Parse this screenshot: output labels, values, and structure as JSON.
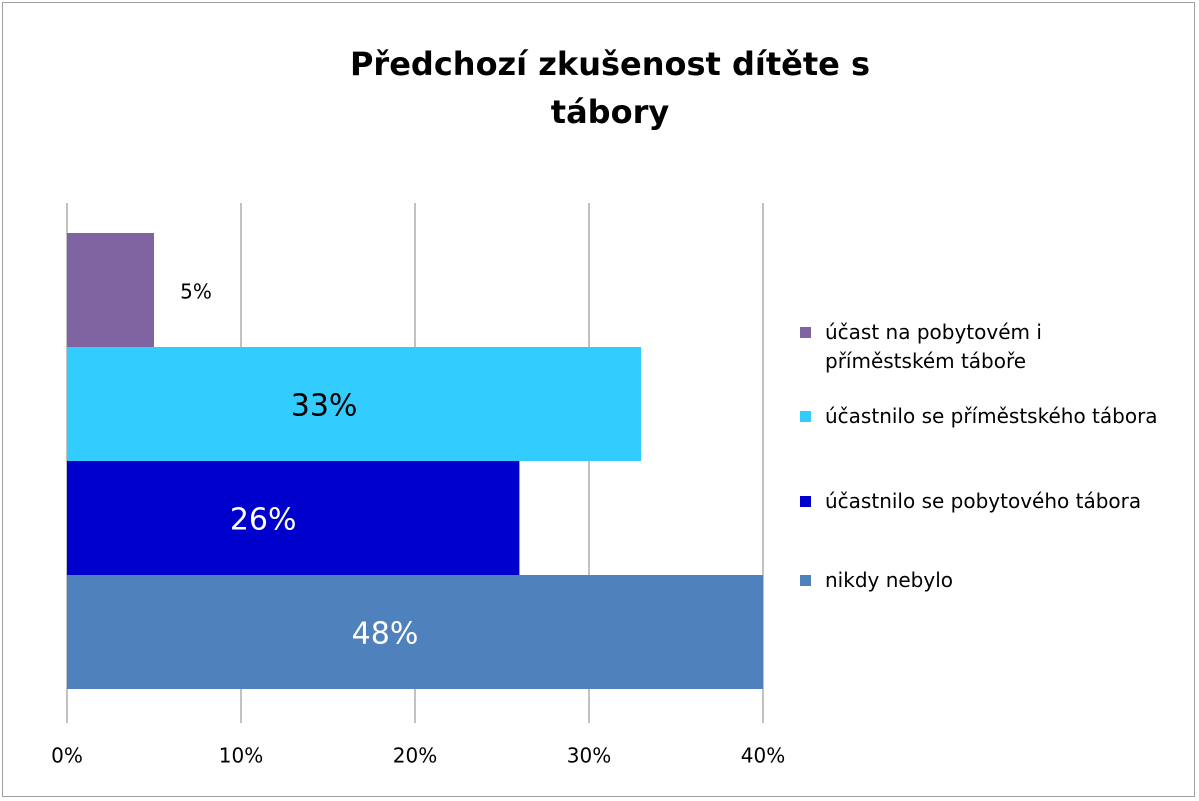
{
  "chart_data": {
    "type": "bar",
    "orientation": "horizontal",
    "title": "Předchozí zkušenost dítěte s tábory",
    "series": [
      {
        "name": "účast na pobytovém i příměstském táboře",
        "color": "#8064a2",
        "values": [
          5
        ],
        "value_labels": [
          "5%"
        ]
      },
      {
        "name": "účastnilo se příměstského tábora",
        "color": "#33ccff",
        "values": [
          33
        ],
        "value_labels": [
          "33%"
        ]
      },
      {
        "name": "účastnilo se pobytového tábora",
        "color": "#0000cc",
        "values": [
          26
        ],
        "value_labels": [
          "26%"
        ]
      },
      {
        "name": "nikdy nebylo",
        "color": "#4f81bd",
        "values": [
          48
        ],
        "value_labels": [
          "48%"
        ]
      }
    ],
    "xlim": [
      0,
      40
    ],
    "xticks": [
      {
        "value": 0,
        "label": "0%"
      },
      {
        "value": 10,
        "label": "10%"
      },
      {
        "value": 20,
        "label": "20%"
      },
      {
        "value": 30,
        "label": "30%"
      },
      {
        "value": 40,
        "label": "40%"
      }
    ],
    "grid": true,
    "legend": "right"
  }
}
